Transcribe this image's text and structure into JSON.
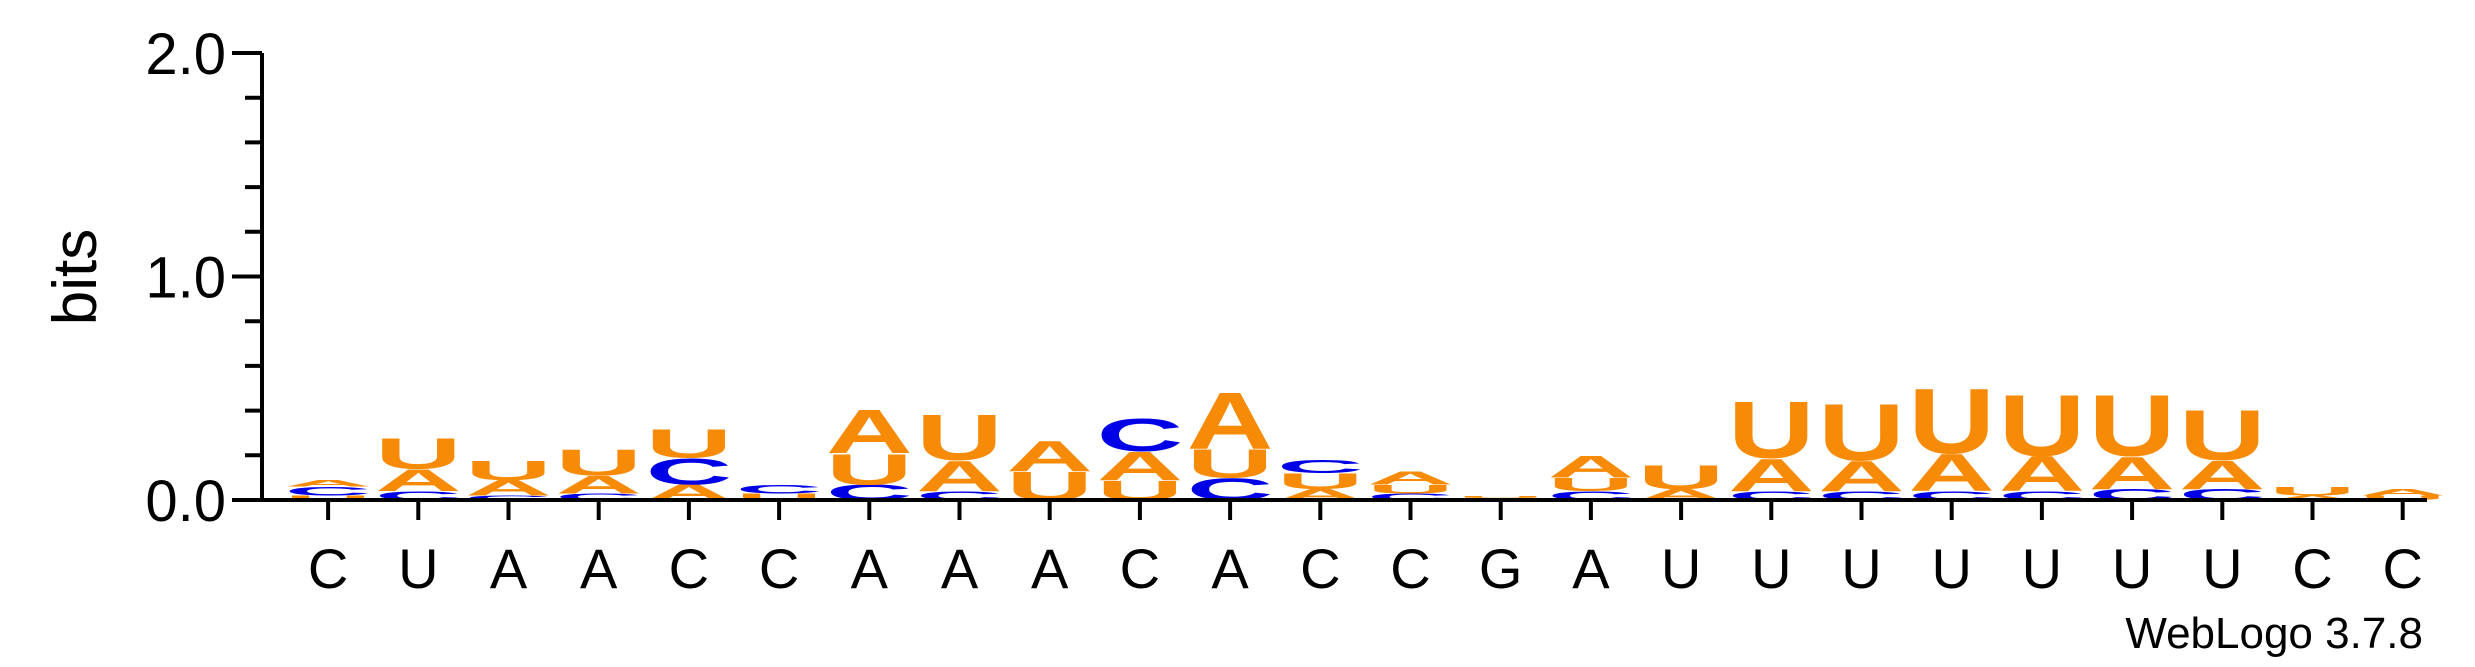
{
  "chart_data": {
    "type": "sequence-logo",
    "ylabel": "bits",
    "ylim": [
      0,
      2.0
    ],
    "yticks": [
      {
        "value": 2.0,
        "label": "2.0"
      },
      {
        "value": 1.0,
        "label": "1.0"
      },
      {
        "value": 0.0,
        "label": "0.0"
      }
    ],
    "colors": {
      "A": "#f78b07",
      "U": "#f78b07",
      "C": "#0000e6",
      "G": "#0000e6"
    },
    "positions": [
      {
        "label": "C",
        "stack": [
          [
            "U",
            0.02
          ],
          [
            "C",
            0.04
          ],
          [
            "A",
            0.03
          ]
        ]
      },
      {
        "label": "U",
        "stack": [
          [
            "C",
            0.04
          ],
          [
            "A",
            0.1
          ],
          [
            "U",
            0.14
          ]
        ]
      },
      {
        "label": "A",
        "stack": [
          [
            "C",
            0.02
          ],
          [
            "A",
            0.07
          ],
          [
            "U",
            0.09
          ]
        ]
      },
      {
        "label": "A",
        "stack": [
          [
            "C",
            0.03
          ],
          [
            "A",
            0.08
          ],
          [
            "U",
            0.12
          ]
        ]
      },
      {
        "label": "C",
        "stack": [
          [
            "A",
            0.07
          ],
          [
            "C",
            0.12
          ],
          [
            "U",
            0.13
          ]
        ]
      },
      {
        "label": "C",
        "stack": [
          [
            "U",
            0.03
          ],
          [
            "C",
            0.04
          ]
        ]
      },
      {
        "label": "A",
        "stack": [
          [
            "C",
            0.07
          ],
          [
            "U",
            0.14
          ],
          [
            "A",
            0.2
          ]
        ]
      },
      {
        "label": "A",
        "stack": [
          [
            "C",
            0.04
          ],
          [
            "A",
            0.14
          ],
          [
            "U",
            0.21
          ]
        ]
      },
      {
        "label": "A",
        "stack": [
          [
            "U",
            0.13
          ],
          [
            "A",
            0.14
          ]
        ]
      },
      {
        "label": "C",
        "stack": [
          [
            "U",
            0.09
          ],
          [
            "A",
            0.13
          ],
          [
            "C",
            0.15
          ]
        ]
      },
      {
        "label": "A",
        "stack": [
          [
            "C",
            0.1
          ],
          [
            "U",
            0.13
          ],
          [
            "A",
            0.26
          ]
        ]
      },
      {
        "label": "C",
        "stack": [
          [
            "A",
            0.05
          ],
          [
            "U",
            0.07
          ],
          [
            "C",
            0.06
          ]
        ]
      },
      {
        "label": "C",
        "stack": [
          [
            "C",
            0.03
          ],
          [
            "U",
            0.04
          ],
          [
            "A",
            0.06
          ]
        ]
      },
      {
        "label": "G",
        "stack": [
          [
            "A",
            0.01
          ],
          [
            "U",
            0.01
          ]
        ]
      },
      {
        "label": "A",
        "stack": [
          [
            "C",
            0.04
          ],
          [
            "U",
            0.06
          ],
          [
            "A",
            0.1
          ]
        ]
      },
      {
        "label": "U",
        "stack": [
          [
            "A",
            0.05
          ],
          [
            "U",
            0.11
          ]
        ]
      },
      {
        "label": "U",
        "stack": [
          [
            "C",
            0.04
          ],
          [
            "A",
            0.15
          ],
          [
            "U",
            0.26
          ]
        ]
      },
      {
        "label": "U",
        "stack": [
          [
            "C",
            0.04
          ],
          [
            "A",
            0.14
          ],
          [
            "U",
            0.26
          ]
        ]
      },
      {
        "label": "U",
        "stack": [
          [
            "C",
            0.04
          ],
          [
            "A",
            0.17
          ],
          [
            "U",
            0.3
          ]
        ]
      },
      {
        "label": "U",
        "stack": [
          [
            "C",
            0.04
          ],
          [
            "A",
            0.16
          ],
          [
            "U",
            0.28
          ]
        ]
      },
      {
        "label": "U",
        "stack": [
          [
            "C",
            0.05
          ],
          [
            "A",
            0.15
          ],
          [
            "U",
            0.28
          ]
        ]
      },
      {
        "label": "U",
        "stack": [
          [
            "C",
            0.05
          ],
          [
            "A",
            0.13
          ],
          [
            "U",
            0.23
          ]
        ]
      },
      {
        "label": "C",
        "stack": [
          [
            "A",
            0.02
          ],
          [
            "U",
            0.04
          ]
        ]
      },
      {
        "label": "C",
        "stack": [
          [
            "U",
            0.02
          ],
          [
            "A",
            0.03
          ]
        ]
      }
    ],
    "credit": "WebLogo 3.7.8"
  }
}
